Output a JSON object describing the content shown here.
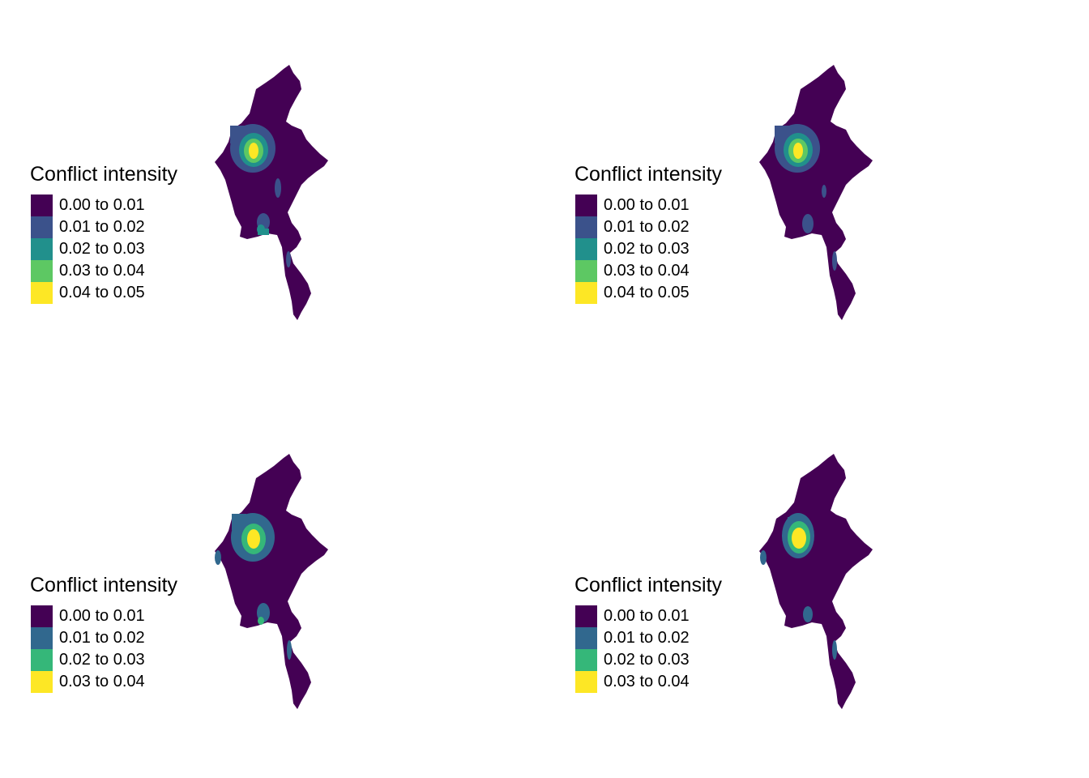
{
  "panels": [
    {
      "legend": {
        "title": "Conflict intensity",
        "items": [
          {
            "label": "0.00 to 0.01",
            "color": "#440154"
          },
          {
            "label": "0.01 to 0.02",
            "color": "#3B528B"
          },
          {
            "label": "0.02 to 0.03",
            "color": "#21908C"
          },
          {
            "label": "0.03 to 0.04",
            "color": "#5DC863"
          },
          {
            "label": "0.04 to 0.05",
            "color": "#FDE725"
          }
        ]
      }
    },
    {
      "legend": {
        "title": "Conflict intensity",
        "items": [
          {
            "label": "0.00 to 0.01",
            "color": "#440154"
          },
          {
            "label": "0.01 to 0.02",
            "color": "#3B528B"
          },
          {
            "label": "0.02 to 0.03",
            "color": "#21908C"
          },
          {
            "label": "0.03 to 0.04",
            "color": "#5DC863"
          },
          {
            "label": "0.04 to 0.05",
            "color": "#FDE725"
          }
        ]
      }
    },
    {
      "legend": {
        "title": "Conflict intensity",
        "items": [
          {
            "label": "0.00 to 0.01",
            "color": "#440154"
          },
          {
            "label": "0.01 to 0.02",
            "color": "#31688E"
          },
          {
            "label": "0.02 to 0.03",
            "color": "#35B779"
          },
          {
            "label": "0.03 to 0.04",
            "color": "#FDE725"
          }
        ]
      }
    },
    {
      "legend": {
        "title": "Conflict intensity",
        "items": [
          {
            "label": "0.00 to 0.01",
            "color": "#440154"
          },
          {
            "label": "0.01 to 0.02",
            "color": "#31688E"
          },
          {
            "label": "0.02 to 0.03",
            "color": "#35B779"
          },
          {
            "label": "0.03 to 0.04",
            "color": "#FDE725"
          }
        ]
      }
    }
  ]
}
